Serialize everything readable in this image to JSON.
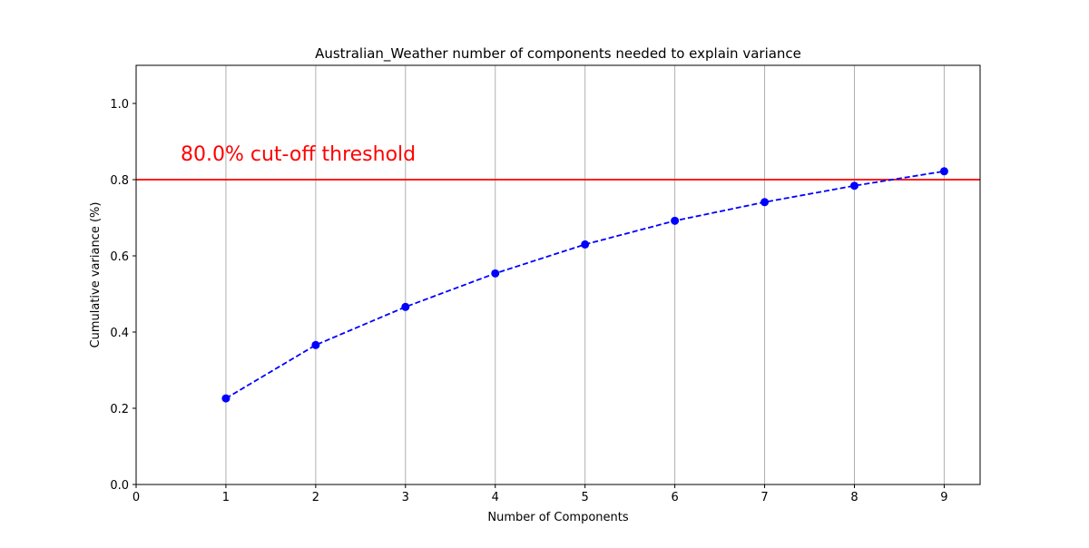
{
  "chart_data": {
    "type": "line",
    "title": "Australian_Weather number of components needed to explain variance",
    "xlabel": "Number of Components",
    "ylabel": "Cumulative variance (%)",
    "xlim": [
      0,
      9.4
    ],
    "ylim": [
      0.0,
      1.1
    ],
    "x_ticks": [
      "0",
      "1",
      "2",
      "3",
      "4",
      "5",
      "6",
      "7",
      "8",
      "9"
    ],
    "y_ticks": [
      "0.0",
      "0.2",
      "0.4",
      "0.6",
      "0.8",
      "1.0"
    ],
    "grid": "vertical",
    "series": [
      {
        "x": [
          1,
          2,
          3,
          4,
          5,
          6,
          7,
          8,
          9
        ],
        "values": [
          0.226,
          0.366,
          0.466,
          0.554,
          0.63,
          0.692,
          0.741,
          0.784,
          0.822
        ],
        "color": "#0000ff",
        "line_style": "dashed",
        "marker": "circle"
      }
    ],
    "threshold": {
      "value": 0.8,
      "label": "80.0% cut-off threshold",
      "color": "#ff0000"
    }
  }
}
